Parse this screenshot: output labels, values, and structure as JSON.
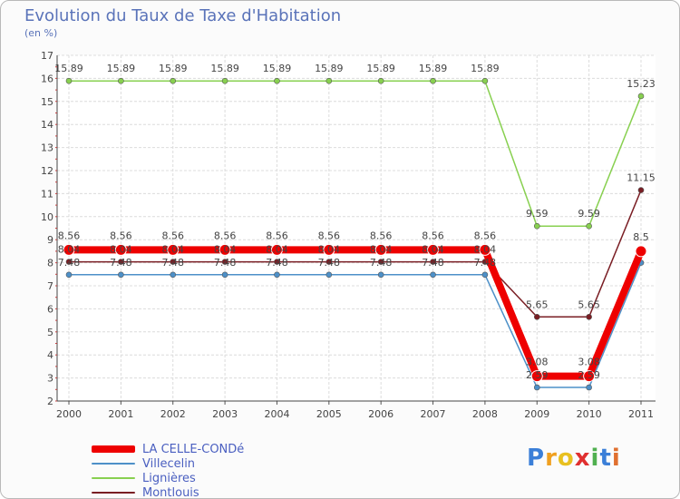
{
  "header": {
    "title": "Evolution du Taux de Taxe d'Habitation",
    "subtitle": "(en %)"
  },
  "chart_data": {
    "type": "line",
    "title": "Evolution du Taux de Taxe d'Habitation",
    "ylabel": "(en %)",
    "xlabel": "",
    "ylim": [
      2,
      17
    ],
    "yticks": [
      2,
      3,
      4,
      5,
      6,
      7,
      8,
      9,
      10,
      11,
      12,
      13,
      14,
      15,
      16,
      17
    ],
    "grid": true,
    "legend_position": "bottom-left",
    "categories": [
      "2000",
      "2001",
      "2002",
      "2003",
      "2004",
      "2005",
      "2006",
      "2007",
      "2008",
      "2009",
      "2010",
      "2011"
    ],
    "series": [
      {
        "name": "LA CELLE-CONDé",
        "color": "#ee0000",
        "values": [
          8.56,
          8.56,
          8.56,
          8.56,
          8.56,
          8.56,
          8.56,
          8.56,
          8.56,
          3.08,
          3.08,
          8.5
        ],
        "labels": [
          "8.56",
          "8.56",
          "8.56",
          "8.56",
          "8.56",
          "8.56",
          "8.56",
          "8.56",
          "8.56",
          "3.08",
          "3.08",
          "8.5"
        ]
      },
      {
        "name": "Villecelin",
        "color": "#4d90c8",
        "values": [
          7.48,
          7.48,
          7.48,
          7.48,
          7.48,
          7.48,
          7.48,
          7.48,
          7.48,
          2.59,
          2.59,
          8.0
        ],
        "labels": [
          "7.48",
          "7.48",
          "7.48",
          "7.48",
          "7.48",
          "7.48",
          "7.48",
          "7.48",
          "7.48",
          "2.59",
          "2.59",
          ""
        ]
      },
      {
        "name": "Lignières",
        "color": "#88d050",
        "values": [
          15.89,
          15.89,
          15.89,
          15.89,
          15.89,
          15.89,
          15.89,
          15.89,
          15.89,
          9.59,
          9.59,
          15.23
        ],
        "labels": [
          "15.89",
          "15.89",
          "15.89",
          "15.89",
          "15.89",
          "15.89",
          "15.89",
          "15.89",
          "15.89",
          "9.59",
          "9.59",
          "15.23"
        ]
      },
      {
        "name": "Montlouis",
        "color": "#7a1e24",
        "values": [
          8.04,
          8.04,
          8.04,
          8.04,
          8.04,
          8.04,
          8.04,
          8.04,
          8.04,
          5.65,
          5.65,
          11.15
        ],
        "labels": [
          "8.04",
          "8.04",
          "8.04",
          "8.04",
          "8.04",
          "8.04",
          "8.04",
          "8.04",
          "8.04",
          "5.65",
          "5.65",
          "11.15"
        ]
      }
    ]
  },
  "legend": {
    "items": [
      "LA CELLE-CONDé",
      "Villecelin",
      "Lignières",
      "Montlouis"
    ]
  },
  "logo": {
    "letters": [
      "P",
      "r",
      "o",
      "x",
      "i",
      "t",
      "i"
    ],
    "colors": [
      "#3b7fd8",
      "#f0a020",
      "#e8c020",
      "#e03030",
      "#50b050",
      "#3b7fd8",
      "#e07030"
    ]
  }
}
